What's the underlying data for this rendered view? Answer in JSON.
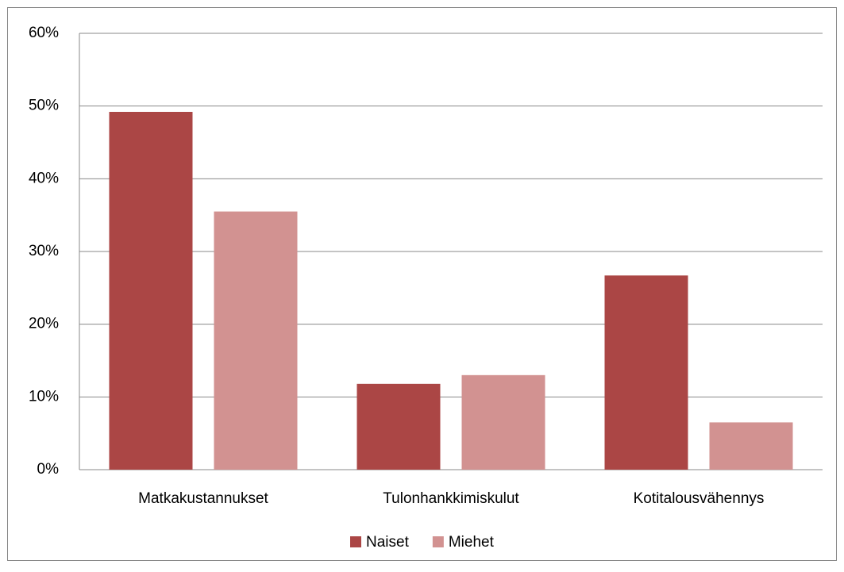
{
  "chart_data": {
    "type": "bar",
    "categories": [
      "Matkakustannukset",
      "Tulonhankkimiskulut",
      "Kotitalousvähennys"
    ],
    "series": [
      {
        "name": "Naiset",
        "color": "#ab4645",
        "values": [
          49.2,
          11.8,
          26.7
        ]
      },
      {
        "name": "Miehet",
        "color": "#d29291",
        "values": [
          35.5,
          13.0,
          6.5
        ]
      }
    ],
    "ylim": [
      0,
      60
    ],
    "yticks": [
      {
        "value": 0,
        "label": "0%"
      },
      {
        "value": 10,
        "label": "10%"
      },
      {
        "value": 20,
        "label": "20%"
      },
      {
        "value": 30,
        "label": "30%"
      },
      {
        "value": 40,
        "label": "40%"
      },
      {
        "value": 50,
        "label": "50%"
      },
      {
        "value": 60,
        "label": "60%"
      }
    ],
    "grid": true,
    "legend": "bottom"
  }
}
